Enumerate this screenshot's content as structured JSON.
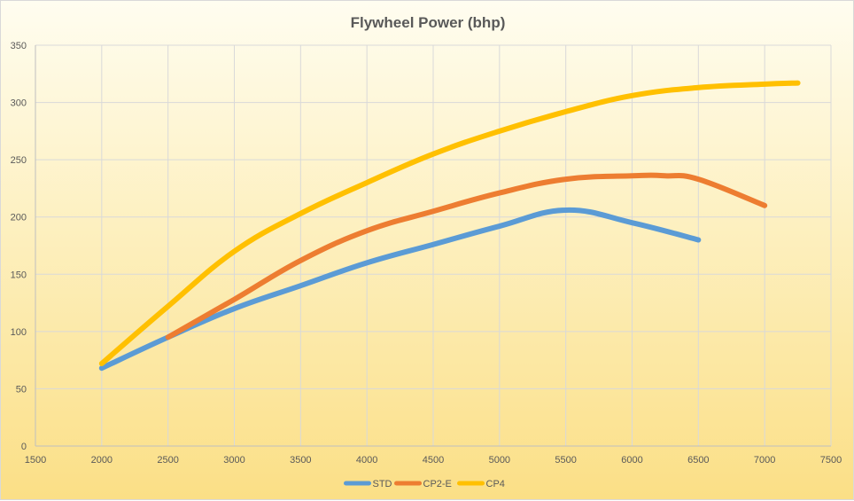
{
  "chart_data": {
    "type": "line",
    "title": "Flywheel Power (bhp)",
    "xlabel": "",
    "ylabel": "",
    "xlim": [
      1500,
      7500
    ],
    "ylim": [
      0,
      350
    ],
    "x_ticks": [
      1500,
      2000,
      2500,
      3000,
      3500,
      4000,
      4500,
      5000,
      5500,
      6000,
      6500,
      7000,
      7500
    ],
    "y_ticks": [
      0,
      50,
      100,
      150,
      200,
      250,
      300,
      350
    ],
    "grid": true,
    "legend_position": "bottom",
    "series": [
      {
        "name": "STD",
        "color": "#5b9bd5",
        "points": [
          [
            2000,
            68
          ],
          [
            2500,
            95
          ],
          [
            3000,
            120
          ],
          [
            3500,
            140
          ],
          [
            4000,
            160
          ],
          [
            4500,
            176
          ],
          [
            5000,
            192
          ],
          [
            5500,
            206
          ],
          [
            6000,
            195
          ],
          [
            6500,
            180
          ]
        ]
      },
      {
        "name": "CP2-E",
        "color": "#ed7d31",
        "points": [
          [
            2500,
            95
          ],
          [
            3000,
            128
          ],
          [
            3500,
            162
          ],
          [
            4000,
            188
          ],
          [
            4500,
            205
          ],
          [
            5000,
            221
          ],
          [
            5500,
            233
          ],
          [
            6000,
            236
          ],
          [
            6250,
            236
          ],
          [
            6500,
            233
          ],
          [
            7000,
            210
          ]
        ]
      },
      {
        "name": "CP4",
        "color": "#ffc000",
        "points": [
          [
            2000,
            72
          ],
          [
            2500,
            122
          ],
          [
            3000,
            170
          ],
          [
            3500,
            203
          ],
          [
            4000,
            230
          ],
          [
            4500,
            255
          ],
          [
            5000,
            275
          ],
          [
            5500,
            292
          ],
          [
            6000,
            306
          ],
          [
            6500,
            313
          ],
          [
            7000,
            316
          ],
          [
            7250,
            317
          ]
        ]
      }
    ]
  }
}
